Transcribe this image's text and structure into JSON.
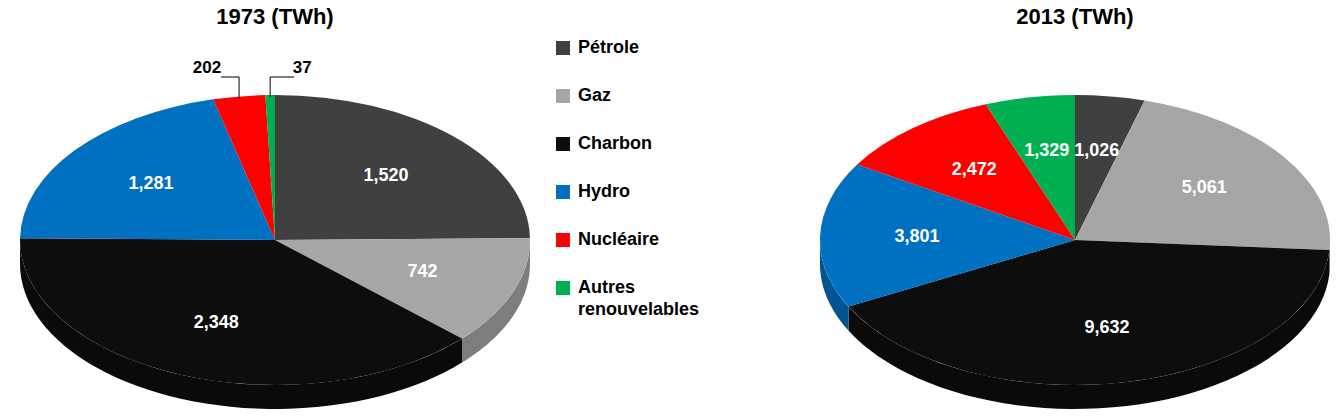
{
  "chart_data": [
    {
      "type": "pie",
      "title": "1973 (TWh)",
      "categories": [
        "Pétrole",
        "Gaz",
        "Charbon",
        "Hydro",
        "Nucléaire",
        "Autres renouvelables"
      ],
      "values": [
        1520,
        742,
        2348,
        1281,
        202,
        37
      ],
      "value_labels": [
        "1,520",
        "742",
        "2,348",
        "1,281",
        "202",
        "37"
      ],
      "colors": [
        "#404040",
        "#a6a6a6",
        "#0d0d0d",
        "#0070c0",
        "#ff0000",
        "#00b050"
      ],
      "data_labels": true,
      "legend": "right"
    },
    {
      "type": "pie",
      "title": "2013 (TWh)",
      "categories": [
        "Pétrole",
        "Gaz",
        "Charbon",
        "Hydro",
        "Nucléaire",
        "Autres renouvelables"
      ],
      "values": [
        1026,
        5061,
        9632,
        3801,
        2472,
        1329
      ],
      "value_labels": [
        "1,026",
        "5,061",
        "9,632",
        "3,801",
        "2,472",
        "1,329"
      ],
      "colors": [
        "#404040",
        "#a6a6a6",
        "#0d0d0d",
        "#0070c0",
        "#ff0000",
        "#00b050"
      ],
      "data_labels": true
    }
  ]
}
